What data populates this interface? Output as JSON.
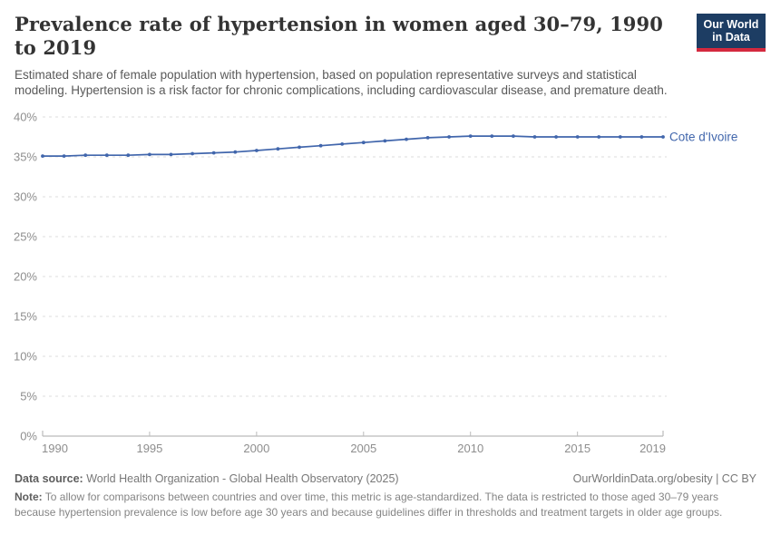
{
  "header": {
    "title": "Prevalence rate of hypertension in women aged 30–79, 1990 to 2019",
    "subtitle": "Estimated share of female population with hypertension, based on population representative surveys and statistical modeling. Hypertension is a risk factor for chronic complications, including cardiovascular disease, and premature death."
  },
  "logo": {
    "line1": "Our World",
    "line2": "in Data",
    "bg_color": "#1d3d63",
    "stripe_color": "#d4293e"
  },
  "chart_data": {
    "type": "line",
    "title": "Prevalence rate of hypertension in women aged 30–79, 1990 to 2019",
    "x": [
      1990,
      1991,
      1992,
      1993,
      1994,
      1995,
      1996,
      1997,
      1998,
      1999,
      2000,
      2001,
      2002,
      2003,
      2004,
      2005,
      2006,
      2007,
      2008,
      2009,
      2010,
      2011,
      2012,
      2013,
      2014,
      2015,
      2016,
      2017,
      2018,
      2019
    ],
    "series": [
      {
        "name": "Cote d'Ivoire",
        "color": "#4166ac",
        "values": [
          35.1,
          35.1,
          35.2,
          35.2,
          35.2,
          35.3,
          35.3,
          35.4,
          35.5,
          35.6,
          35.8,
          36.0,
          36.2,
          36.4,
          36.6,
          36.8,
          37.0,
          37.2,
          37.4,
          37.5,
          37.6,
          37.6,
          37.6,
          37.5,
          37.5,
          37.5,
          37.5,
          37.5,
          37.5,
          37.5
        ]
      }
    ],
    "xlim": [
      1990,
      2019
    ],
    "ylim": [
      0,
      40
    ],
    "xticks": [
      1990,
      1995,
      2000,
      2005,
      2010,
      2015,
      2019
    ],
    "yticks": [
      0,
      5,
      10,
      15,
      20,
      25,
      30,
      35,
      40
    ],
    "ytick_suffix": "%",
    "grid": "horizontal-dashed",
    "legend": "line-end-label",
    "grid_color": "#dcdcdc",
    "axis_color": "#bbbbbb",
    "tick_label_color": "#8e8e8e"
  },
  "footer": {
    "datasource_label": "Data source:",
    "datasource_value": " World Health Organization - Global Health Observatory (2025)",
    "link_text": "OurWorldinData.org/obesity | CC BY",
    "note_label": "Note:",
    "note_value": " To allow for comparisons between countries and over time, this metric is age-standardized. The data is restricted to those aged 30–79 years because hypertension prevalence is low before age 30 years and because guidelines differ in thresholds and treatment targets in older age groups."
  }
}
